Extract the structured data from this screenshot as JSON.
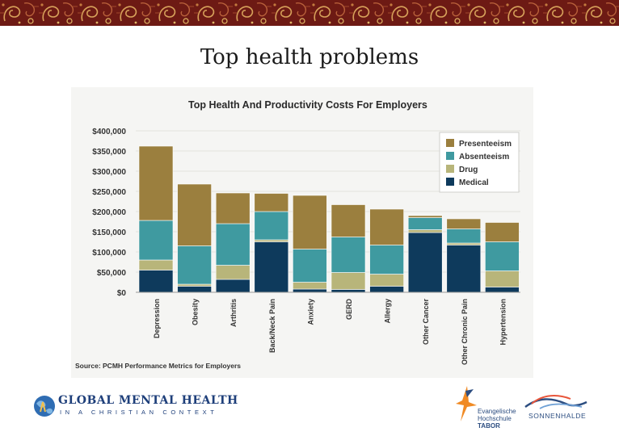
{
  "slide": {
    "title": "Top health problems",
    "source": "Source: PCMH Performance Metrics for Employers"
  },
  "logos": {
    "left_line1": "GLOBAL MENTAL HEALTH",
    "left_line2": "IN A CHRISTIAN CONTEXT",
    "tabor_line1": "Evangelische",
    "tabor_line2": "Hochschule",
    "tabor_line3": "TABOR",
    "right_text": "SONNENHALDE"
  },
  "colors": {
    "presenteeism": "#9b7f3e",
    "absenteeism": "#3f9aa0",
    "drug": "#b8b57a",
    "medical": "#0e3a5c",
    "banner": "#7a1f1a"
  },
  "chart_data": {
    "type": "bar",
    "stacked": true,
    "title": "Top Health And Productivity Costs For Employers",
    "categories": [
      "Depression",
      "Obesity",
      "Arthritis",
      "Back/Neck Pain",
      "Anxiety",
      "GERD",
      "Allergy",
      "Other Cancer",
      "Other Chronic Pain",
      "Hypertension"
    ],
    "series": [
      {
        "name": "Medical",
        "color": "#0e3a5c",
        "values": [
          55000,
          15000,
          32000,
          125000,
          8000,
          7000,
          15000,
          148000,
          117000,
          13000
        ]
      },
      {
        "name": "Drug",
        "color": "#b8b57a",
        "values": [
          25000,
          5000,
          35000,
          5000,
          17000,
          42000,
          30000,
          7000,
          5000,
          40000
        ]
      },
      {
        "name": "Absenteeism",
        "color": "#3f9aa0",
        "values": [
          98000,
          95000,
          103000,
          70000,
          82000,
          88000,
          72000,
          30000,
          35000,
          72000
        ]
      },
      {
        "name": "Presenteeism",
        "color": "#9b7f3e",
        "values": [
          184000,
          153000,
          76000,
          45000,
          133000,
          80000,
          89000,
          5000,
          25000,
          48000
        ]
      }
    ],
    "legend": [
      "Presenteeism",
      "Absenteeism",
      "Drug",
      "Medical"
    ],
    "legend_position": "top-right",
    "yticks": [
      "$400,000",
      "$350,000",
      "$300,000",
      "$250,000",
      "$200,000",
      "$150,000",
      "$100,000",
      "$50,000",
      "$0"
    ],
    "ylim": [
      0,
      400000
    ]
  }
}
